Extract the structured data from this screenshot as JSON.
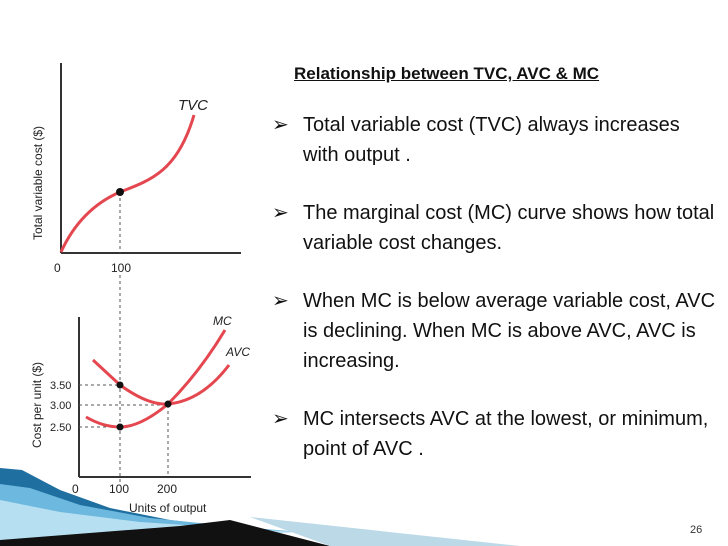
{
  "heading": "Relationship between TVC, AVC & MC",
  "bullets": [
    "Total variable cost (TVC) always increases with output .",
    "The marginal cost (MC) curve shows how total variable cost changes.",
    "When MC is below average variable cost, AVC is declining. When MC is above AVC, AVC is increasing.",
    "MC intersects AVC at the lowest, or minimum, point of AVC ."
  ],
  "bullet_marker": "➢",
  "page_number": "26",
  "colors": {
    "curve": "#e4474f",
    "axis": "#333333",
    "accent": "#1d5f8a"
  },
  "chart_data": [
    {
      "type": "line",
      "ylabel": "Total variable cost ($)",
      "xlabel": "",
      "x_ticks": [
        "0",
        "100"
      ],
      "series": [
        {
          "name": "TVC",
          "marked_point_x": 100
        }
      ]
    },
    {
      "type": "line",
      "ylabel": "Cost per unit ($)",
      "xlabel": "Units of output",
      "x_ticks": [
        "0",
        "100",
        "200"
      ],
      "y_ticks": [
        "3.50",
        "3.00",
        "2.50"
      ],
      "series": [
        {
          "name": "MC",
          "marked_points": [
            {
              "x": 100,
              "y": 2.5
            },
            {
              "x": 200,
              "y": 3.0
            }
          ]
        },
        {
          "name": "AVC",
          "marked_points": [
            {
              "x": 100,
              "y": 3.5
            },
            {
              "x": 200,
              "y": 3.0
            }
          ]
        }
      ]
    }
  ]
}
